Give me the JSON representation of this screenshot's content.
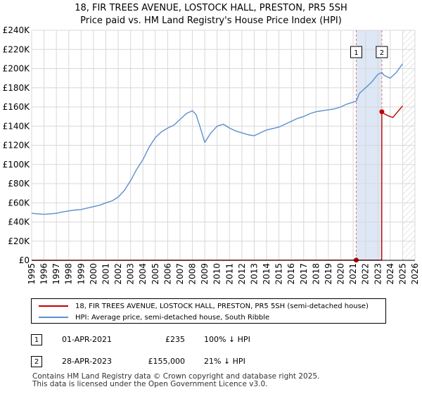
{
  "title": {
    "line1": "18, FIR TREES AVENUE, LOSTOCK HALL, PRESTON, PR5 5SH",
    "line2": "Price paid vs. HM Land Registry's House Price Index (HPI)"
  },
  "colors": {
    "price_paid": "#c00000",
    "hpi": "#5b8fd0",
    "shade": "#dde7f5",
    "vline": "#e07070",
    "grid": "#d8d8d8"
  },
  "chart_data": {
    "type": "line",
    "title": "Price paid vs. HM Land Registry's House Price Index (HPI)",
    "xlabel": "",
    "ylabel": "",
    "xlim": [
      1995,
      2026
    ],
    "ylim": [
      0,
      240000
    ],
    "grid": true,
    "legend_position": "below",
    "y_ticks": [
      {
        "value": 0,
        "label": "£0"
      },
      {
        "value": 20000,
        "label": "£20K"
      },
      {
        "value": 40000,
        "label": "£40K"
      },
      {
        "value": 60000,
        "label": "£60K"
      },
      {
        "value": 80000,
        "label": "£80K"
      },
      {
        "value": 100000,
        "label": "£100K"
      },
      {
        "value": 120000,
        "label": "£120K"
      },
      {
        "value": 140000,
        "label": "£140K"
      },
      {
        "value": 160000,
        "label": "£160K"
      },
      {
        "value": 180000,
        "label": "£180K"
      },
      {
        "value": 200000,
        "label": "£200K"
      },
      {
        "value": 220000,
        "label": "£220K"
      },
      {
        "value": 240000,
        "label": "£240K"
      }
    ],
    "x_ticks": [
      "1995",
      "1996",
      "1997",
      "1998",
      "1999",
      "2000",
      "2001",
      "2002",
      "2003",
      "2004",
      "2005",
      "2006",
      "2007",
      "2008",
      "2009",
      "2010",
      "2011",
      "2012",
      "2013",
      "2014",
      "2015",
      "2016",
      "2017",
      "2018",
      "2019",
      "2020",
      "2021",
      "2022",
      "2023",
      "2024",
      "2025",
      "2026"
    ],
    "shaded_period": [
      2021.25,
      2023.32
    ],
    "future_hatch_from": 2025.0,
    "series": [
      {
        "name": "HPI: Average price, semi-detached house, South Ribble",
        "x": [
          1995.0,
          1995.5,
          1996.0,
          1996.5,
          1997.0,
          1997.5,
          1998.0,
          1998.5,
          1999.0,
          1999.5,
          2000.0,
          2000.5,
          2001.0,
          2001.5,
          2002.0,
          2002.5,
          2003.0,
          2003.5,
          2004.0,
          2004.5,
          2005.0,
          2005.5,
          2006.0,
          2006.5,
          2007.0,
          2007.5,
          2008.0,
          2008.3,
          2008.6,
          2009.0,
          2009.5,
          2010.0,
          2010.5,
          2011.0,
          2011.5,
          2012.0,
          2012.5,
          2013.0,
          2013.5,
          2014.0,
          2014.5,
          2015.0,
          2015.5,
          2016.0,
          2016.5,
          2017.0,
          2017.5,
          2018.0,
          2018.5,
          2019.0,
          2019.5,
          2020.0,
          2020.5,
          2021.0,
          2021.25,
          2021.5,
          2022.0,
          2022.5,
          2023.0,
          2023.32,
          2023.5,
          2024.0,
          2024.5,
          2025.0
        ],
        "y": [
          49000,
          48500,
          48000,
          48500,
          49000,
          50500,
          51500,
          52500,
          53000,
          54500,
          56000,
          57500,
          60000,
          62000,
          66000,
          73000,
          83000,
          95000,
          105000,
          118000,
          128000,
          134000,
          138000,
          141000,
          147000,
          153000,
          156000,
          152000,
          140000,
          123000,
          133000,
          140000,
          142000,
          138000,
          135000,
          133000,
          131000,
          130000,
          133000,
          136000,
          137500,
          139000,
          142000,
          145000,
          148000,
          150000,
          153000,
          155000,
          156000,
          157000,
          158000,
          160000,
          163000,
          165000,
          166000,
          174000,
          180000,
          186000,
          194000,
          196000,
          193000,
          190000,
          196000,
          205000
        ]
      },
      {
        "name": "18, FIR TREES AVENUE, LOSTOCK HALL, PRESTON, PR5 5SH (semi-detached house)",
        "x": [
          1995.0,
          2021.25,
          2023.31,
          2023.32,
          2023.5,
          2023.8,
          2024.2,
          2024.6,
          2025.0
        ],
        "y": [
          0,
          235,
          235,
          155000,
          153000,
          151000,
          149000,
          155000,
          161000
        ]
      }
    ],
    "annotations": [
      {
        "id": "1",
        "label": "1",
        "x": 2021.25,
        "y": 235
      },
      {
        "id": "2",
        "label": "2",
        "x": 2023.32,
        "y": 155000
      }
    ]
  },
  "legend": {
    "price_paid_label": "18, FIR TREES AVENUE, LOSTOCK HALL, PRESTON, PR5 5SH (semi-detached house)",
    "hpi_label": "HPI: Average price, semi-detached house, South Ribble"
  },
  "transactions": [
    {
      "num": "1",
      "date": "01-APR-2021",
      "price": "£235",
      "hpi": "100% ↓ HPI"
    },
    {
      "num": "2",
      "date": "28-APR-2023",
      "price": "£155,000",
      "hpi": "21% ↓ HPI"
    }
  ],
  "footer": {
    "line1": "Contains HM Land Registry data © Crown copyright and database right 2025.",
    "line2": "This data is licensed under the Open Government Licence v3.0."
  }
}
